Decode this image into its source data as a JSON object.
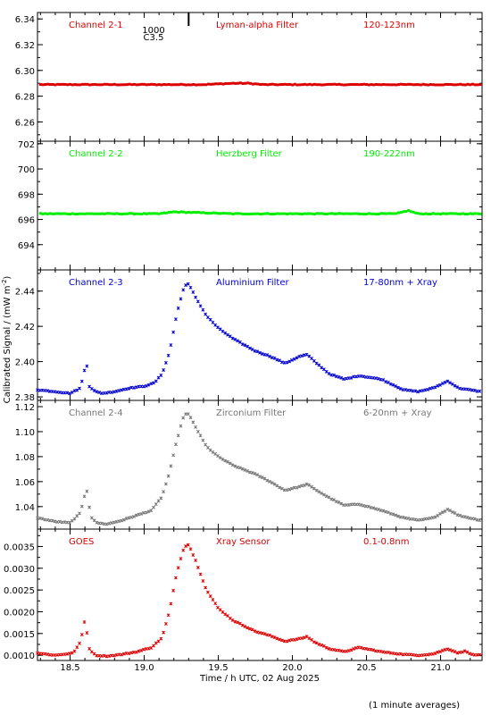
{
  "figure": {
    "ylabel": "Calibrated Signal / (mW m",
    "ylabel_sup": "-2",
    "ylabel_close": ")",
    "xlabel": "Time / h UTC, 02 Aug 2025",
    "footnote": "(1 minute averages)",
    "flare_marker": {
      "time": 19.3,
      "label_top": "1000",
      "label_bottom": "C3.5"
    }
  },
  "chart_data": [
    {
      "type": "scatter",
      "name": "Channel 2-1",
      "labels": {
        "channel": "Channel 2-1",
        "filter": "Lyman-alpha Filter",
        "band": "120-123nm"
      },
      "color": "#dd0000",
      "ylim": [
        6.245,
        6.345
      ],
      "yticks": [
        6.26,
        6.28,
        6.3,
        6.32,
        6.34
      ],
      "ytick_decimals": 2,
      "x": [
        18.3,
        18.6,
        19.0,
        19.4,
        19.6,
        19.7,
        19.8,
        20.2,
        20.6,
        21.0,
        21.27
      ],
      "y": [
        6.289,
        6.289,
        6.289,
        6.289,
        6.29,
        6.29,
        6.289,
        6.289,
        6.289,
        6.289,
        6.289
      ],
      "sampling": "1min"
    },
    {
      "type": "scatter",
      "name": "Channel 2-2",
      "labels": {
        "channel": "Channel 2-2",
        "filter": "Herzberg Filter",
        "band": "190-222nm"
      },
      "color": "#00ee00",
      "ylim": [
        692.0,
        702.2
      ],
      "yticks": [
        694,
        696,
        698,
        700,
        702
      ],
      "ytick_decimals": 0,
      "x": [
        18.3,
        18.8,
        19.1,
        19.2,
        19.6,
        20.2,
        20.7,
        20.78,
        20.85,
        21.27
      ],
      "y": [
        696.45,
        696.45,
        696.45,
        696.6,
        696.45,
        696.45,
        696.45,
        696.7,
        696.45,
        696.45
      ],
      "sampling": "1min"
    },
    {
      "type": "scatter",
      "name": "Channel 2-3",
      "labels": {
        "channel": "Channel 2-3",
        "filter": "Aluminium Filter",
        "band": "17-80nm + Xray"
      },
      "color": "#0000cc",
      "ylim": [
        2.378,
        2.452
      ],
      "yticks": [
        2.38,
        2.4,
        2.42,
        2.44
      ],
      "ytick_decimals": 2,
      "x": [
        18.28,
        18.4,
        18.5,
        18.57,
        18.61,
        18.63,
        18.67,
        18.72,
        18.8,
        18.9,
        19.0,
        19.07,
        19.12,
        19.17,
        19.22,
        19.27,
        19.3,
        19.35,
        19.42,
        19.5,
        19.6,
        19.75,
        19.85,
        19.95,
        20.05,
        20.1,
        20.15,
        20.25,
        20.35,
        20.45,
        20.6,
        20.75,
        20.85,
        20.95,
        21.05,
        21.12,
        21.27
      ],
      "y": [
        2.384,
        2.383,
        2.382,
        2.385,
        2.4,
        2.386,
        2.383,
        2.382,
        2.383,
        2.385,
        2.386,
        2.388,
        2.393,
        2.405,
        2.427,
        2.443,
        2.444,
        2.436,
        2.426,
        2.419,
        2.413,
        2.406,
        2.403,
        2.399,
        2.403,
        2.404,
        2.4,
        2.393,
        2.39,
        2.392,
        2.39,
        2.384,
        2.383,
        2.385,
        2.389,
        2.385,
        2.383
      ],
      "sampling": "1min"
    },
    {
      "type": "scatter",
      "name": "Channel 2-4",
      "labels": {
        "channel": "Channel 2-4",
        "filter": "Zirconium Filter",
        "band": "6-20nm + Xray"
      },
      "color": "#777777",
      "ylim": [
        1.022,
        1.125
      ],
      "yticks": [
        1.04,
        1.06,
        1.08,
        1.1,
        1.12
      ],
      "ytick_decimals": 2,
      "x": [
        18.28,
        18.4,
        18.5,
        18.57,
        18.61,
        18.64,
        18.68,
        18.75,
        18.85,
        18.95,
        19.05,
        19.12,
        19.17,
        19.22,
        19.27,
        19.3,
        19.35,
        19.42,
        19.5,
        19.6,
        19.75,
        19.85,
        19.95,
        20.05,
        20.1,
        20.15,
        20.25,
        20.35,
        20.45,
        20.6,
        20.75,
        20.85,
        20.95,
        21.05,
        21.12,
        21.27
      ],
      "y": [
        1.031,
        1.028,
        1.027,
        1.035,
        1.055,
        1.032,
        1.027,
        1.026,
        1.029,
        1.033,
        1.037,
        1.048,
        1.067,
        1.093,
        1.114,
        1.114,
        1.103,
        1.088,
        1.08,
        1.073,
        1.066,
        1.06,
        1.053,
        1.056,
        1.058,
        1.054,
        1.047,
        1.041,
        1.042,
        1.037,
        1.031,
        1.029,
        1.031,
        1.038,
        1.033,
        1.029
      ],
      "sampling": "1min"
    },
    {
      "type": "scatter",
      "name": "GOES",
      "labels": {
        "channel": "GOES",
        "filter": "Xray Sensor",
        "band": "0.1-0.8nm"
      },
      "color": "#dd0000",
      "ylim": [
        0.00088,
        0.0039
      ],
      "yticks": [
        0.001,
        0.0015,
        0.002,
        0.0025,
        0.003,
        0.0035
      ],
      "ytick_decimals": 4,
      "x": [
        18.28,
        18.4,
        18.52,
        18.57,
        18.6,
        18.63,
        18.67,
        18.75,
        18.85,
        18.95,
        19.05,
        19.12,
        19.17,
        19.22,
        19.27,
        19.3,
        19.35,
        19.42,
        19.5,
        19.6,
        19.75,
        19.85,
        19.95,
        20.05,
        20.1,
        20.15,
        20.25,
        20.35,
        20.45,
        20.6,
        20.75,
        20.85,
        20.95,
        21.05,
        21.12,
        21.17,
        21.22,
        21.27
      ],
      "y": [
        0.00105,
        0.001,
        0.00105,
        0.0013,
        0.00182,
        0.00115,
        0.001,
        0.00098,
        0.00102,
        0.00108,
        0.00118,
        0.0014,
        0.002,
        0.0029,
        0.0035,
        0.00355,
        0.00315,
        0.0025,
        0.00208,
        0.0018,
        0.00155,
        0.00145,
        0.00132,
        0.00138,
        0.00143,
        0.0013,
        0.00115,
        0.00108,
        0.00118,
        0.00108,
        0.00102,
        0.001,
        0.00103,
        0.00115,
        0.00105,
        0.0011,
        0.001,
        0.00102
      ],
      "sampling": "1min"
    }
  ],
  "xaxis": {
    "xlim": [
      18.28,
      21.28
    ],
    "ticks": [
      18.5,
      19.0,
      19.5,
      20.0,
      20.5,
      21.0
    ],
    "tick_labels": [
      "18.5",
      "19.0",
      "19.5",
      "20.0",
      "20.5",
      "21.0"
    ]
  }
}
